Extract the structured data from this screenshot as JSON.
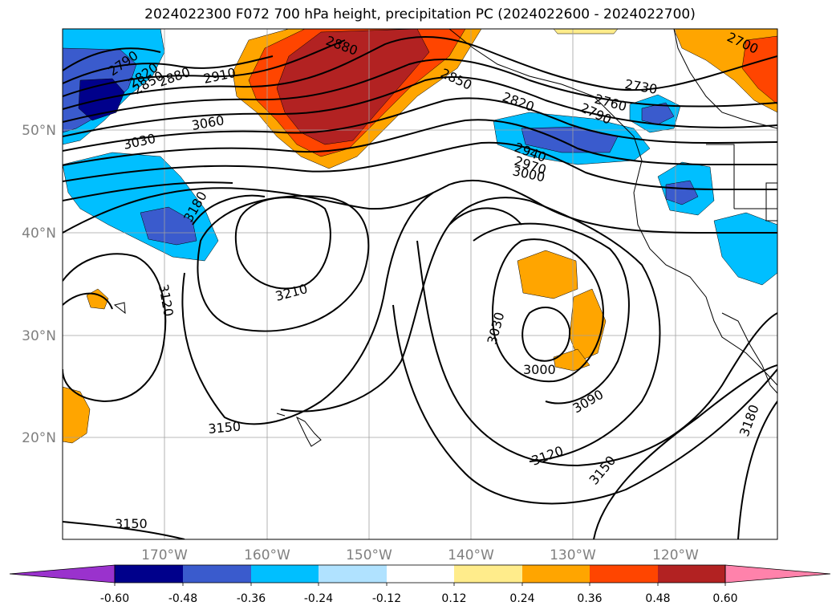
{
  "title": "2024022300 F072 700 hPa height, precipitation PC (2024022600 - 2024022700)",
  "map": {
    "lon_range": [
      -180,
      -110
    ],
    "lat_range": [
      10,
      60
    ],
    "lat_ticks": [
      "50°N",
      "40°N",
      "30°N",
      "20°N"
    ],
    "lon_ticks": [
      "170°W",
      "160°W",
      "150°W",
      "140°W",
      "130°W",
      "120°W"
    ],
    "gridlines": true
  },
  "contour_labels": [
    "2790",
    "2820",
    "2850",
    "2880",
    "2910",
    "3030",
    "3060",
    "3180",
    "3120",
    "3210",
    "3150",
    "3150",
    "2880",
    "2850",
    "2820",
    "2760",
    "2730",
    "2790",
    "2700",
    "2940",
    "2970",
    "3000",
    "3030",
    "3000",
    "3090",
    "3120",
    "3150",
    "3180"
  ],
  "colorbar": {
    "colors": [
      "#9a32cd",
      "#00008b",
      "#3a5bcd",
      "#00bfff",
      "#b0e2ff",
      "#ffffff",
      "#ffec8b",
      "#ffa500",
      "#ff4500",
      "#b22222",
      "#ff82ab"
    ],
    "tick_labels": [
      "-0.60",
      "-0.48",
      "-0.36",
      "-0.24",
      "-0.12",
      "0.12",
      "0.24",
      "0.36",
      "0.48",
      "0.60"
    ]
  },
  "fill_colors": {
    "dark_blue": "#00008b",
    "mid_blue": "#3a5bcd",
    "light_blue": "#00bfff",
    "yellow": "#ffec8b",
    "orange": "#ffa500",
    "red_orange": "#ff4500",
    "dark_red": "#b22222"
  }
}
